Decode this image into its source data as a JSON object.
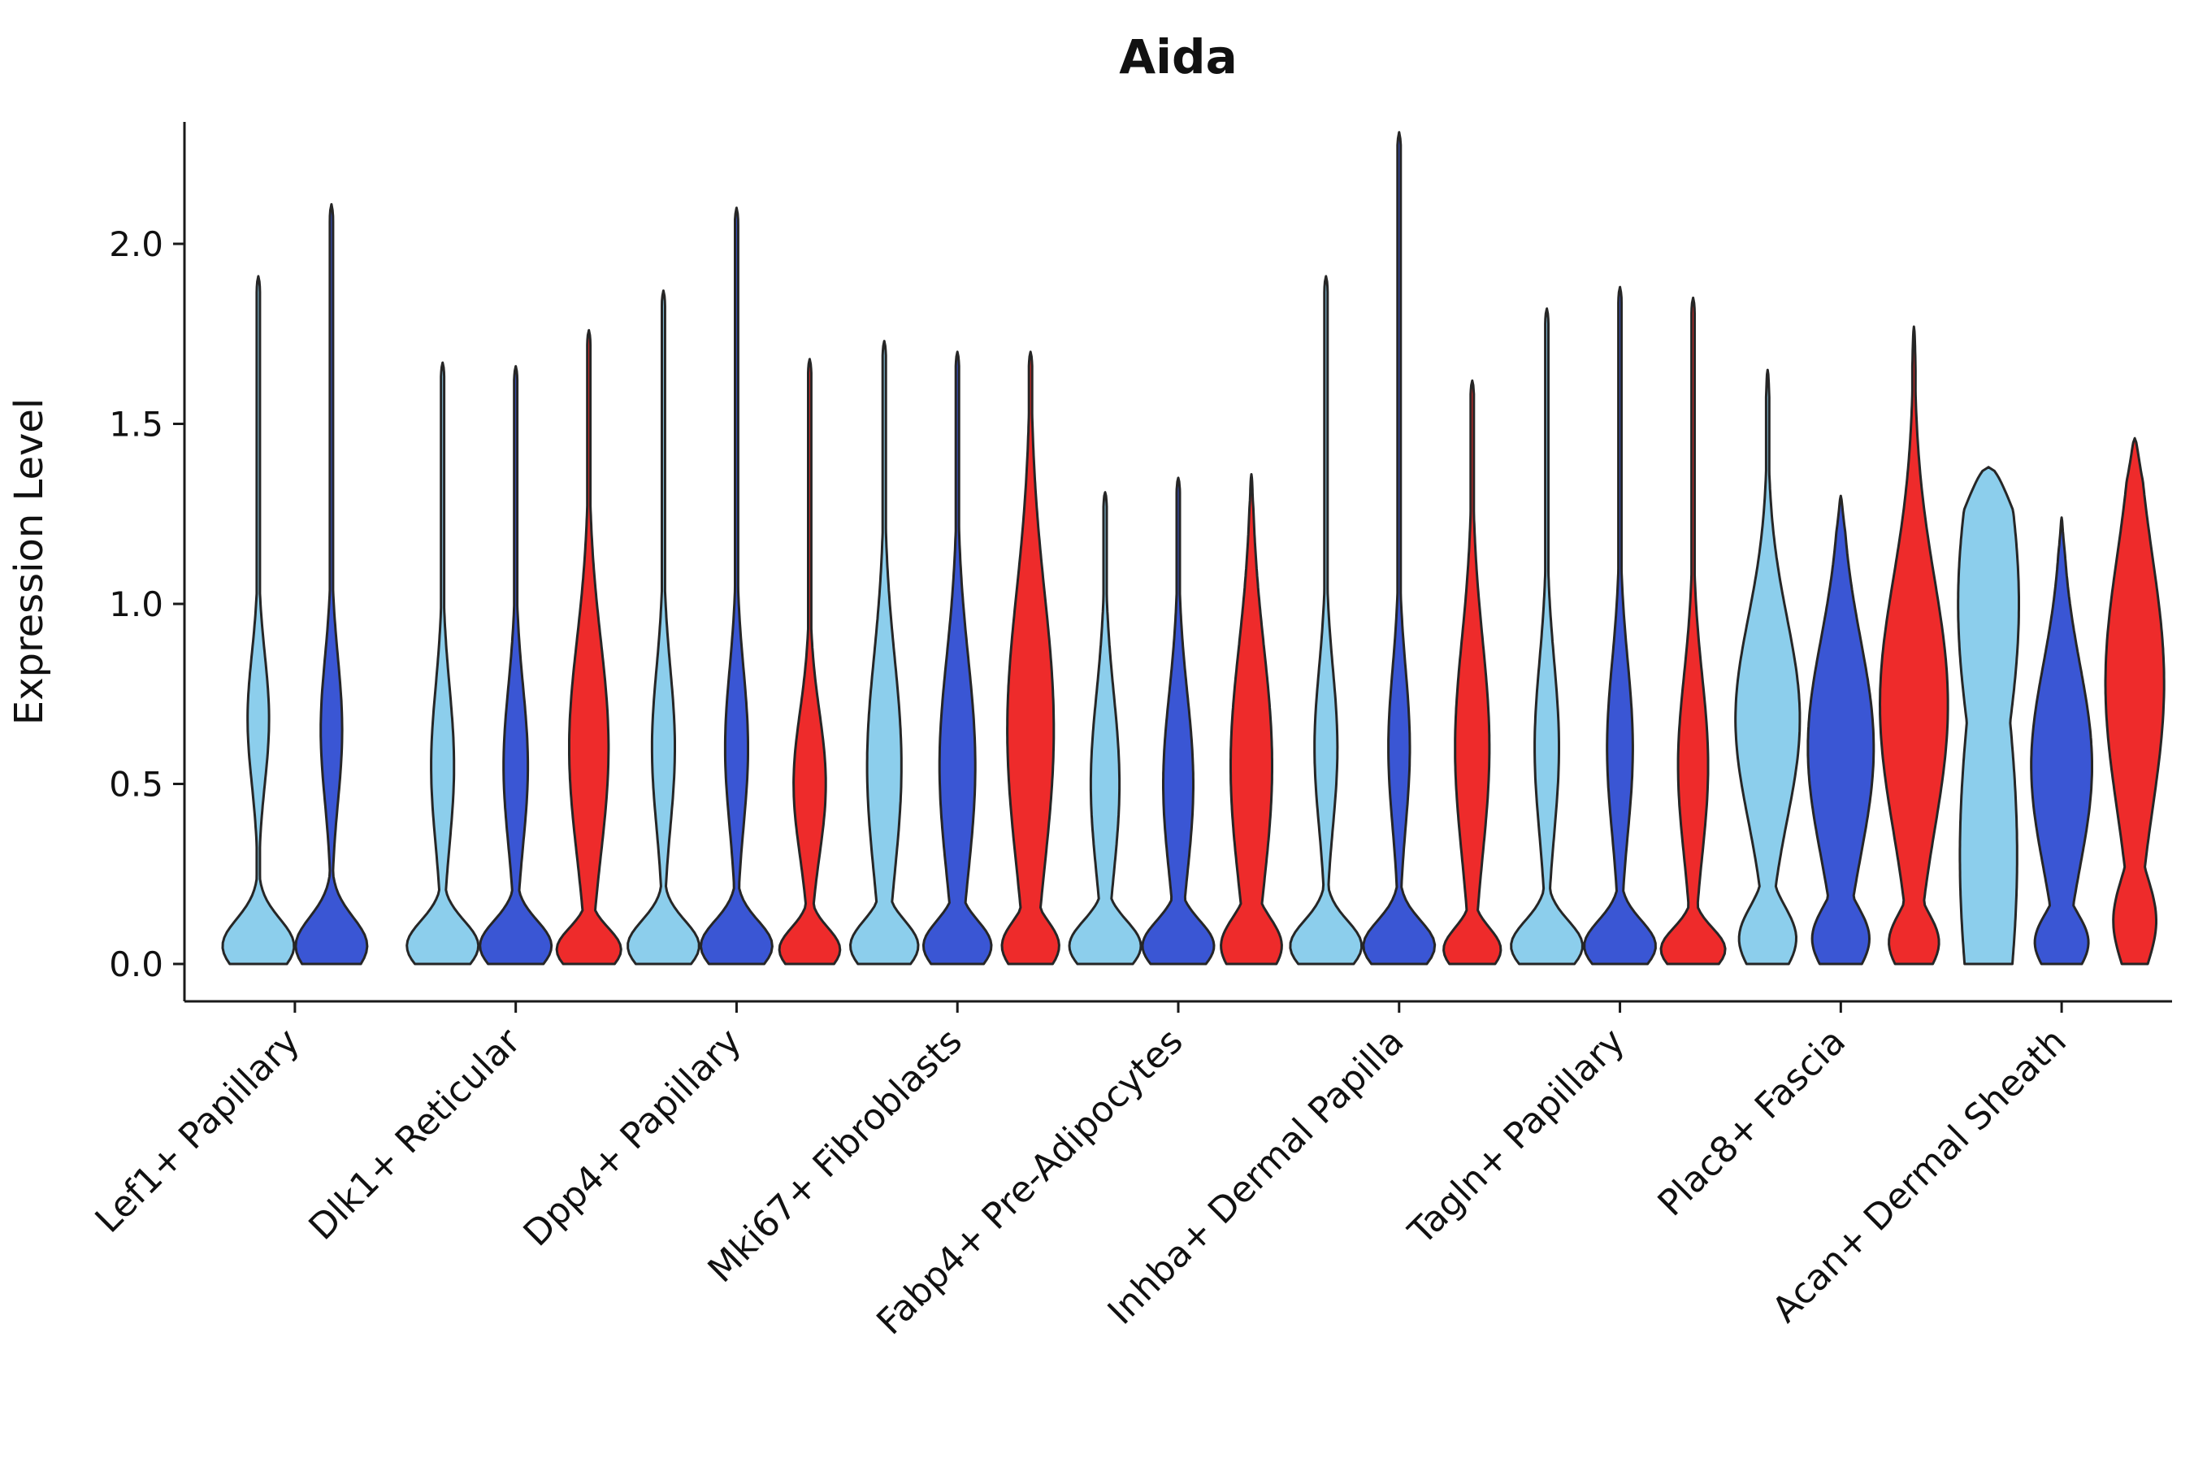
{
  "figure": {
    "background": "#ffffff"
  },
  "chart_data": {
    "type": "violin",
    "title": "Aida",
    "ylabel": "Expression Level",
    "xlabel": "",
    "legend": "none",
    "grid": false,
    "ylim": [
      -0.1,
      2.45
    ],
    "yticks": [
      {
        "value": 0.0,
        "label": "0.0"
      },
      {
        "value": 0.5,
        "label": "0.5"
      },
      {
        "value": 1.0,
        "label": "1.0"
      },
      {
        "value": 1.5,
        "label": "1.5"
      },
      {
        "value": 2.0,
        "label": "2.0"
      }
    ],
    "palette": {
      "light_blue": "#8CCEEC",
      "blue": "#3A56D4",
      "red": "#EE2B2B"
    },
    "outline_color": "#262626",
    "axis_color": "#1a1a1a",
    "categories": [
      "Lef1+ Papillary",
      "Dlk1+ Reticular",
      "Dpp4+ Papillary",
      "Mki67+ Fibroblasts",
      "Fabp4+ Pre-Adipocytes",
      "Inhba+ Dermal Papilla",
      "Tagln+ Papillary",
      "Plac8+ Fascia",
      "Acan+ Dermal Sheath"
    ],
    "groups": [
      {
        "category": "Lef1+ Papillary",
        "violins": [
          {
            "color": "light_blue",
            "max": 1.91,
            "bumps": [
              [
                0.05,
                1.0,
                0.075
              ],
              [
                0.68,
                0.3,
                0.18
              ]
            ]
          },
          {
            "color": "blue",
            "max": 2.11,
            "bumps": [
              [
                0.05,
                1.0,
                0.08
              ],
              [
                0.65,
                0.3,
                0.2
              ]
            ]
          }
        ]
      },
      {
        "category": "Dlk1+ Reticular",
        "violins": [
          {
            "color": "light_blue",
            "max": 1.67,
            "bumps": [
              [
                0.05,
                1.0,
                0.07
              ],
              [
                0.55,
                0.32,
                0.22
              ]
            ]
          },
          {
            "color": "blue",
            "max": 1.66,
            "bumps": [
              [
                0.05,
                1.0,
                0.07
              ],
              [
                0.55,
                0.34,
                0.22
              ]
            ]
          },
          {
            "color": "red",
            "max": 1.76,
            "bumps": [
              [
                0.04,
                0.9,
                0.06
              ],
              [
                0.6,
                0.55,
                0.3
              ]
            ]
          }
        ]
      },
      {
        "category": "Dpp4+ Papillary",
        "violins": [
          {
            "color": "light_blue",
            "max": 1.87,
            "bumps": [
              [
                0.05,
                1.0,
                0.07
              ],
              [
                0.6,
                0.32,
                0.22
              ]
            ]
          },
          {
            "color": "blue",
            "max": 2.1,
            "bumps": [
              [
                0.05,
                1.0,
                0.07
              ],
              [
                0.6,
                0.32,
                0.22
              ]
            ]
          },
          {
            "color": "red",
            "max": 1.68,
            "bumps": [
              [
                0.04,
                0.85,
                0.06
              ],
              [
                0.5,
                0.45,
                0.2
              ]
            ]
          }
        ]
      },
      {
        "category": "Mki67+ Fibroblasts",
        "violins": [
          {
            "color": "light_blue",
            "max": 1.73,
            "bumps": [
              [
                0.05,
                0.95,
                0.07
              ],
              [
                0.55,
                0.48,
                0.3
              ]
            ]
          },
          {
            "color": "blue",
            "max": 1.7,
            "bumps": [
              [
                0.05,
                0.95,
                0.07
              ],
              [
                0.55,
                0.5,
                0.3
              ]
            ]
          },
          {
            "color": "red",
            "max": 1.7,
            "bumps": [
              [
                0.05,
                0.8,
                0.07
              ],
              [
                0.65,
                0.65,
                0.38
              ]
            ]
          }
        ]
      },
      {
        "category": "Fabp4+ Pre-Adipocytes",
        "violins": [
          {
            "color": "light_blue",
            "max": 1.31,
            "bumps": [
              [
                0.05,
                1.0,
                0.07
              ],
              [
                0.5,
                0.4,
                0.25
              ]
            ]
          },
          {
            "color": "blue",
            "max": 1.35,
            "bumps": [
              [
                0.05,
                1.0,
                0.07
              ],
              [
                0.5,
                0.42,
                0.25
              ]
            ]
          },
          {
            "color": "red",
            "max": 1.36,
            "bumps": [
              [
                0.05,
                0.85,
                0.08
              ],
              [
                0.55,
                0.58,
                0.33
              ]
            ],
            "t": 0.1
          }
        ]
      },
      {
        "category": "Inhba+ Dermal Papilla",
        "violins": [
          {
            "color": "light_blue",
            "max": 1.91,
            "bumps": [
              [
                0.05,
                1.0,
                0.07
              ],
              [
                0.6,
                0.32,
                0.22
              ]
            ]
          },
          {
            "color": "blue",
            "max": 2.31,
            "bumps": [
              [
                0.05,
                1.0,
                0.07
              ],
              [
                0.6,
                0.3,
                0.22
              ]
            ]
          },
          {
            "color": "red",
            "max": 1.62,
            "bumps": [
              [
                0.04,
                0.8,
                0.06
              ],
              [
                0.6,
                0.48,
                0.3
              ]
            ]
          }
        ]
      },
      {
        "category": "Tagln+ Papillary",
        "violins": [
          {
            "color": "light_blue",
            "max": 1.82,
            "bumps": [
              [
                0.05,
                1.0,
                0.07
              ],
              [
                0.6,
                0.34,
                0.24
              ]
            ]
          },
          {
            "color": "blue",
            "max": 1.88,
            "bumps": [
              [
                0.05,
                1.0,
                0.07
              ],
              [
                0.6,
                0.36,
                0.24
              ]
            ]
          },
          {
            "color": "red",
            "max": 1.85,
            "bumps": [
              [
                0.04,
                0.9,
                0.06
              ],
              [
                0.55,
                0.42,
                0.25
              ]
            ]
          }
        ]
      },
      {
        "category": "Plac8+ Fascia",
        "violins": [
          {
            "color": "light_blue",
            "max": 1.65,
            "bumps": [
              [
                0.07,
                0.8,
                0.09
              ],
              [
                0.68,
                0.9,
                0.28
              ]
            ],
            "t": 0.08
          },
          {
            "color": "blue",
            "max": 1.3,
            "bumps": [
              [
                0.07,
                0.8,
                0.09
              ],
              [
                0.6,
                0.92,
                0.3
              ]
            ],
            "t": 0.1
          },
          {
            "color": "red",
            "max": 1.77,
            "bumps": [
              [
                0.06,
                0.7,
                0.08
              ],
              [
                0.72,
                0.95,
                0.35
              ]
            ],
            "t": 0.12
          }
        ]
      },
      {
        "category": "Acan+ Dermal Sheath",
        "violins": [
          {
            "color": "light_blue",
            "max": 1.38,
            "bumps": [
              [
                0.3,
                0.8,
                0.5
              ],
              [
                1.0,
                0.85,
                0.4
              ]
            ],
            "t": 0.12
          },
          {
            "color": "blue",
            "max": 1.24,
            "bumps": [
              [
                0.06,
                0.75,
                0.08
              ],
              [
                0.55,
                0.85,
                0.28
              ]
            ],
            "t": 0.1
          },
          {
            "color": "red",
            "max": 1.46,
            "bumps": [
              [
                0.12,
                0.6,
                0.12
              ],
              [
                0.78,
                0.82,
                0.35
              ]
            ],
            "t": 0.12
          }
        ]
      }
    ]
  }
}
